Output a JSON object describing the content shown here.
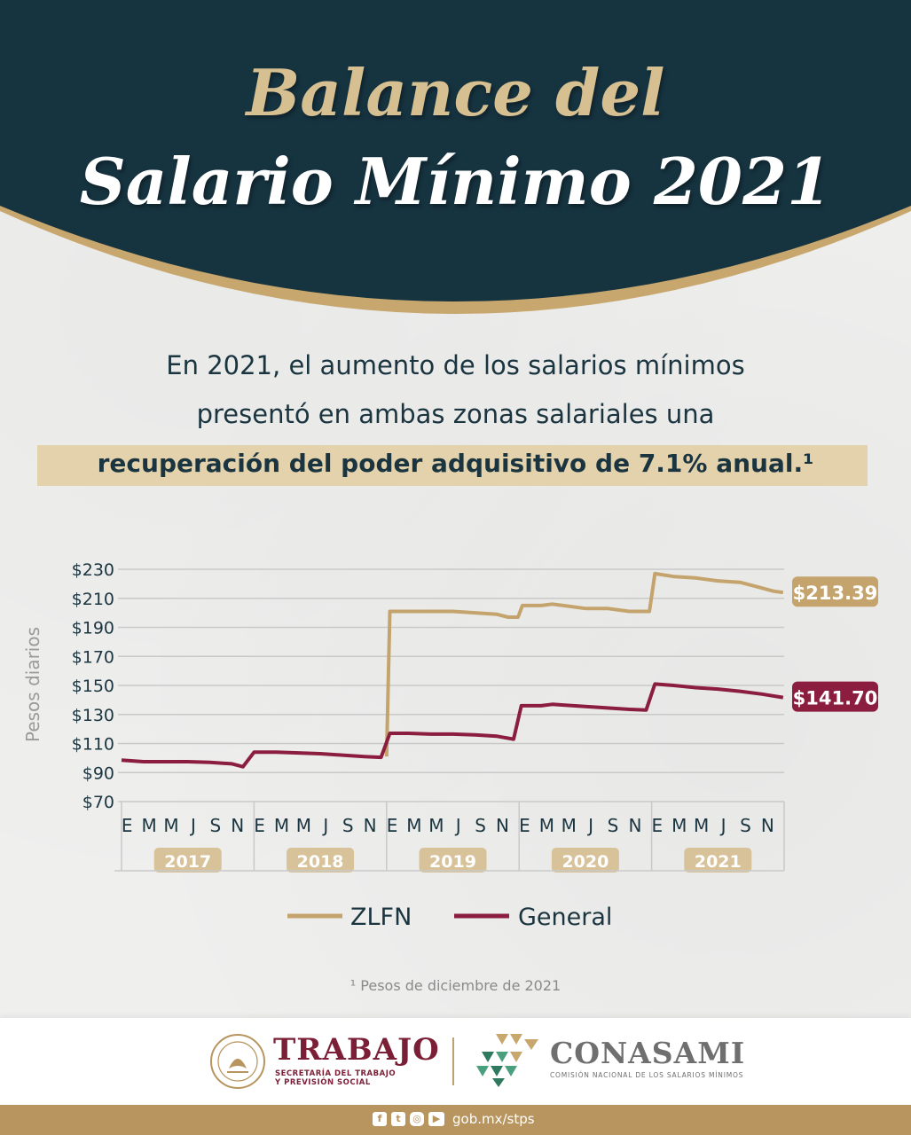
{
  "header": {
    "title_line1": "Balance del",
    "title_line2": "Salario Mínimo 2021"
  },
  "intro": {
    "line1": "En 2021, el aumento de los salarios mínimos",
    "line2": "presentó en ambas zonas salariales una",
    "line3": "recuperación del poder adquisitivo de 7.1% anual.¹"
  },
  "colors": {
    "header_bg": "#163340",
    "gold": "#c8a76e",
    "zlfn": "#c4a46c",
    "general": "#8b1e3f"
  },
  "chart_data": {
    "type": "line",
    "ylabel": "Pesos diarios",
    "ylim": [
      70,
      230
    ],
    "yticks": [
      70,
      90,
      110,
      130,
      150,
      170,
      190,
      210,
      230
    ],
    "ytick_labels": [
      "$70",
      "$90",
      "$110",
      "$130",
      "$150",
      "$170",
      "$190",
      "$210",
      "$230"
    ],
    "month_labels": [
      "E",
      "M",
      "M",
      "J",
      "S",
      "N"
    ],
    "years": [
      "2017",
      "2018",
      "2019",
      "2020",
      "2021"
    ],
    "grid": true,
    "legend_position": "bottom",
    "x_unit": "month index from January 2017",
    "series": [
      {
        "name": "ZLFN",
        "color": "#c4a46c",
        "end_label": "$213.39",
        "values": [
          [
            24,
            101
          ],
          [
            24.3,
            201
          ],
          [
            26,
            201
          ],
          [
            28,
            201
          ],
          [
            30,
            201
          ],
          [
            32,
            200
          ],
          [
            34,
            199
          ],
          [
            35,
            197
          ],
          [
            35.9,
            197
          ],
          [
            36.3,
            205
          ],
          [
            37,
            205
          ],
          [
            38,
            205
          ],
          [
            39,
            206
          ],
          [
            40,
            205
          ],
          [
            42,
            203
          ],
          [
            44,
            203
          ],
          [
            45,
            202
          ],
          [
            46,
            201
          ],
          [
            47.8,
            201
          ],
          [
            48.3,
            227
          ],
          [
            50,
            225
          ],
          [
            52,
            224
          ],
          [
            54,
            222
          ],
          [
            56,
            221
          ],
          [
            57.5,
            218
          ],
          [
            59,
            215
          ],
          [
            59.9,
            214
          ]
        ]
      },
      {
        "name": "General",
        "color": "#8b1e3f",
        "end_label": "$141.70",
        "values": [
          [
            0,
            98.5
          ],
          [
            2,
            97.5
          ],
          [
            4,
            97.5
          ],
          [
            6,
            97.5
          ],
          [
            8,
            97
          ],
          [
            10,
            96
          ],
          [
            11,
            94
          ],
          [
            12,
            104
          ],
          [
            14,
            104
          ],
          [
            16,
            103.5
          ],
          [
            18,
            103
          ],
          [
            20,
            102
          ],
          [
            22,
            101
          ],
          [
            23.5,
            100.5
          ],
          [
            24.3,
            117
          ],
          [
            26,
            117
          ],
          [
            28,
            116.5
          ],
          [
            30,
            116.5
          ],
          [
            32,
            116
          ],
          [
            34,
            115
          ],
          [
            35.5,
            113
          ],
          [
            36.2,
            136
          ],
          [
            38,
            136
          ],
          [
            39,
            137
          ],
          [
            40,
            136.5
          ],
          [
            42,
            135.5
          ],
          [
            44,
            134.5
          ],
          [
            46,
            133.5
          ],
          [
            47.5,
            133
          ],
          [
            48.3,
            151
          ],
          [
            50,
            150
          ],
          [
            52,
            148.5
          ],
          [
            54,
            147.5
          ],
          [
            56,
            146
          ],
          [
            58,
            144
          ],
          [
            59.9,
            141.7
          ]
        ]
      }
    ]
  },
  "legend": {
    "zlfn": "ZLFN",
    "general": "General"
  },
  "footnote": "¹ Pesos de diciembre de 2021",
  "footer": {
    "trabajo_name": "TRABAJO",
    "trabajo_sub": "SECRETARÍA DEL TRABAJO\nY PREVISIÓN SOCIAL",
    "conasami_name": "CONASAMI",
    "conasami_sub": "COMISIÓN NACIONAL DE LOS SALARIOS MÍNIMOS",
    "social_icons": [
      "facebook-icon",
      "twitter-icon",
      "instagram-icon",
      "youtube-icon"
    ],
    "url": "gob.mx/stps"
  }
}
